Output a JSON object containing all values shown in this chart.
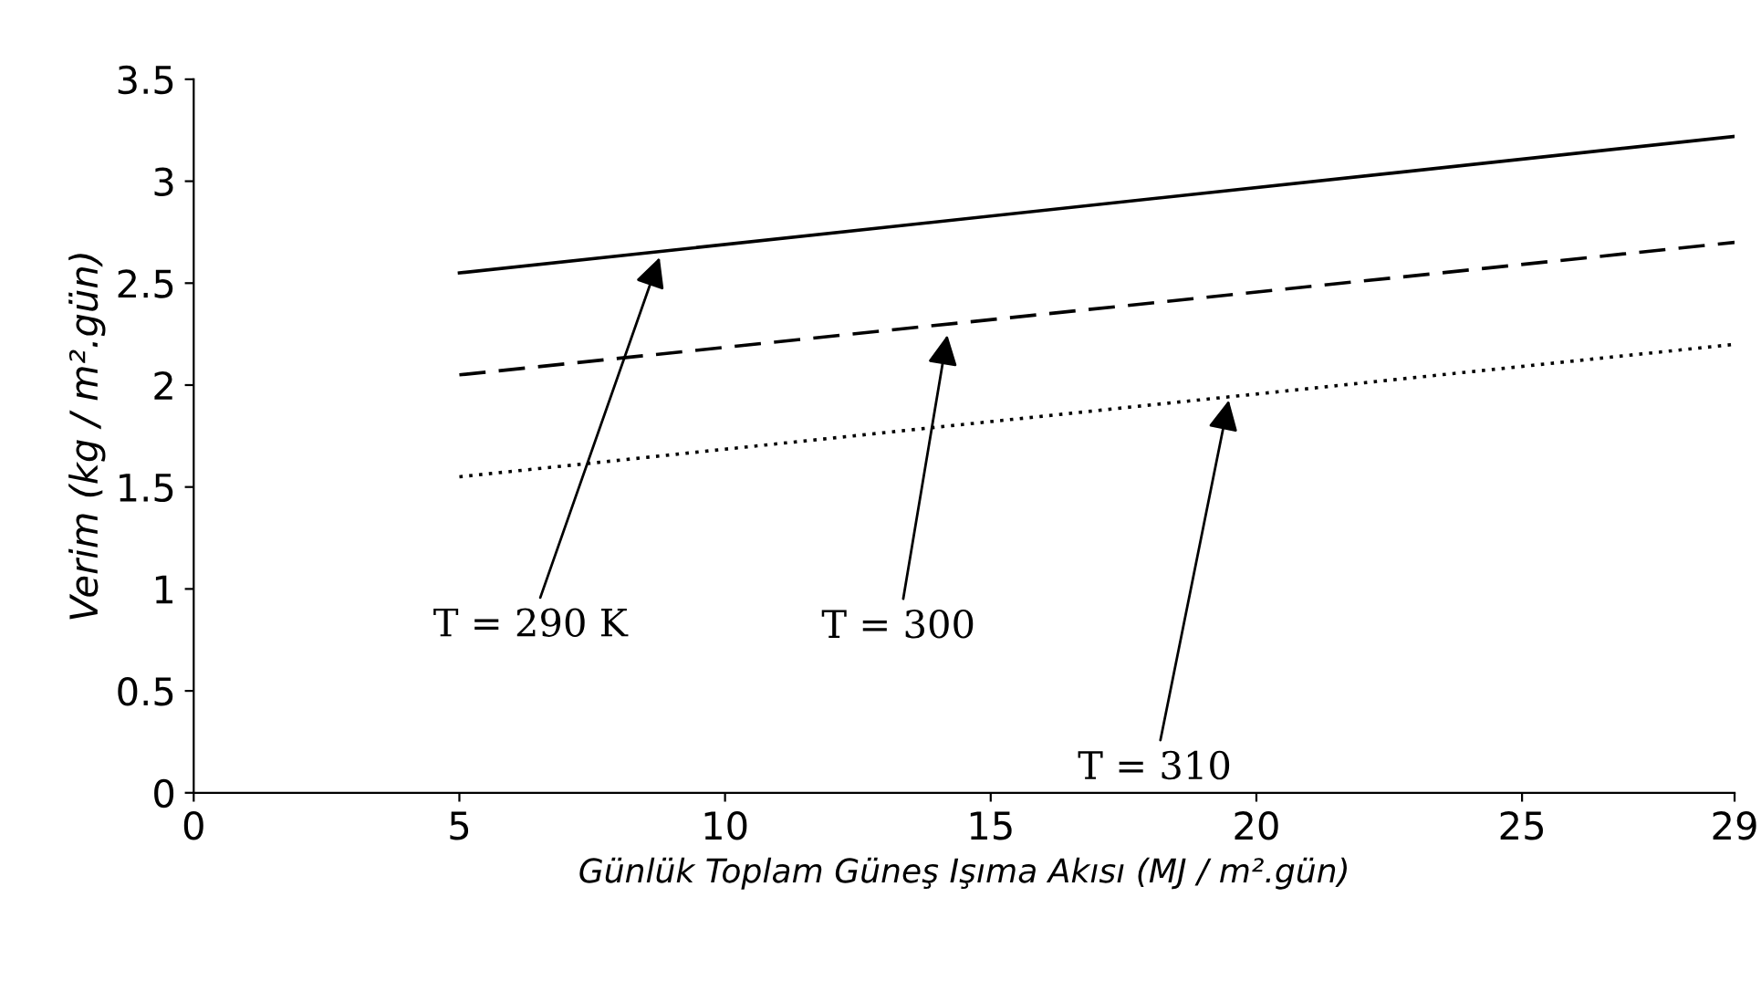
{
  "chart_data": {
    "type": "line",
    "xlabel": "Günlük Toplam Güneş Işıma Akısı (MJ / m².gün)",
    "ylabel": "Verim (kg / m².gün)",
    "xlim": [
      0,
      29
    ],
    "xticks": [
      0,
      5,
      10,
      15,
      20,
      25,
      29
    ],
    "ylim": [
      0,
      3.5
    ],
    "yticks": [
      0,
      0.5,
      1,
      1.5,
      2,
      2.5,
      3,
      3.5
    ],
    "grid": false,
    "legend": false,
    "marker": "none",
    "series": [
      {
        "color": "#000000",
        "line_style": "solid",
        "values": [
          2.55,
          3.22
        ]
      },
      {
        "color": "#000000",
        "line_style": "dashed",
        "values": [
          2.05,
          2.7
        ]
      },
      {
        "color": "#000000",
        "line_style": "dotted",
        "values": [
          1.55,
          2.2
        ]
      }
    ],
    "x": [
      5,
      29
    ],
    "annotations": [
      {
        "text": "T = 290 K",
        "x": 8.8,
        "y": 2.65
      },
      {
        "text": "T = 300",
        "x": 14.2,
        "y": 2.27
      },
      {
        "text": "T = 310",
        "x": 19.5,
        "y": 1.95
      }
    ]
  }
}
